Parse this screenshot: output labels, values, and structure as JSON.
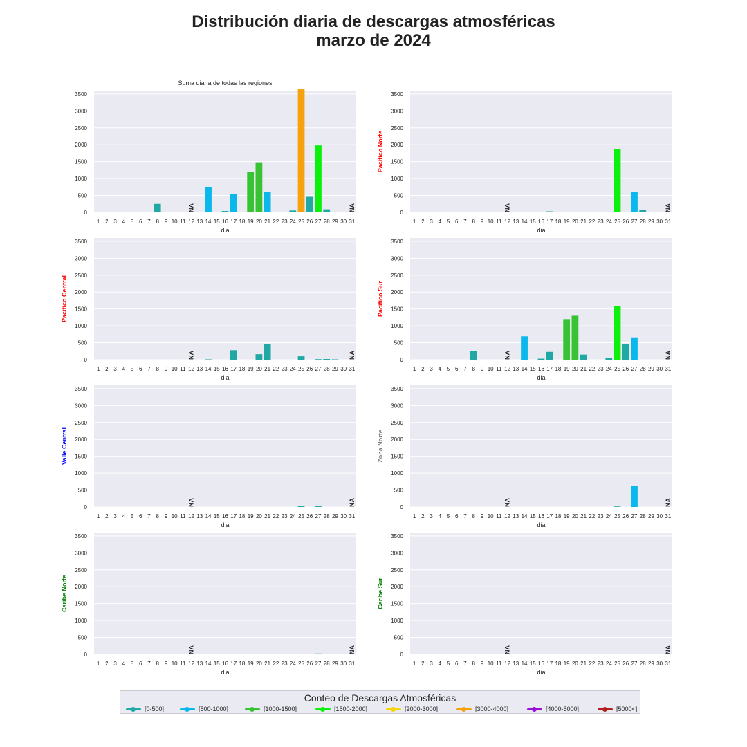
{
  "title_line1": "Distribución diaria de descargas atmosféricas",
  "title_line2": "marzo de 2024",
  "legend": {
    "title": "Conteo de Descargas Atmosféricas",
    "items": [
      {
        "label": "[0-500]",
        "color": "#20a9a4"
      },
      {
        "label": "[500-1000]",
        "color": "#0bb8ec"
      },
      {
        "label": "[1000-1500]",
        "color": "#38c334"
      },
      {
        "label": "[1500-2000]",
        "color": "#0df00d"
      },
      {
        "label": "[2000-3000]",
        "color": "#f6d40c"
      },
      {
        "label": "[3000-4000]",
        "color": "#f5a20e"
      },
      {
        "label": "[4000-5000]",
        "color": "#9a10d8"
      },
      {
        "label": "[5000<]",
        "color": "#b0201e"
      }
    ]
  },
  "chart_data": [
    {
      "type": "bar",
      "title": "Suma diaria de todas las regiones",
      "ylabel": "",
      "ylabel_color": "",
      "xlabel": "dia",
      "ylim": [
        0,
        3600
      ],
      "yticks": [
        0,
        500,
        1000,
        1500,
        2000,
        2500,
        3000,
        3500
      ],
      "categories": [
        "1",
        "2",
        "3",
        "4",
        "5",
        "6",
        "7",
        "8",
        "9",
        "10",
        "11",
        "12",
        "13",
        "14",
        "15",
        "16",
        "17",
        "18",
        "19",
        "20",
        "21",
        "22",
        "23",
        "24",
        "25",
        "26",
        "27",
        "28",
        "29",
        "30",
        "31"
      ],
      "values": [
        0,
        0,
        0,
        0,
        0,
        0,
        0,
        250,
        0,
        0,
        0,
        null,
        0,
        740,
        0,
        40,
        550,
        0,
        1200,
        1480,
        610,
        0,
        0,
        55,
        3640,
        460,
        1980,
        90,
        0,
        0,
        null
      ],
      "na_label": "NA"
    },
    {
      "type": "bar",
      "title": "",
      "ylabel": "Pacífico Norte",
      "ylabel_color": "#ff0000",
      "xlabel": "dia",
      "ylim": [
        0,
        3600
      ],
      "yticks": [
        0,
        500,
        1000,
        1500,
        2000,
        2500,
        3000,
        3500
      ],
      "categories": [
        "1",
        "2",
        "3",
        "4",
        "5",
        "6",
        "7",
        "8",
        "9",
        "10",
        "11",
        "12",
        "13",
        "14",
        "15",
        "16",
        "17",
        "18",
        "19",
        "20",
        "21",
        "22",
        "23",
        "24",
        "25",
        "26",
        "27",
        "28",
        "29",
        "30",
        "31"
      ],
      "values": [
        0,
        0,
        0,
        0,
        0,
        0,
        0,
        0,
        0,
        0,
        0,
        null,
        0,
        0,
        0,
        0,
        30,
        0,
        0,
        0,
        15,
        0,
        0,
        0,
        1870,
        0,
        600,
        70,
        0,
        0,
        null
      ],
      "na_label": "NA"
    },
    {
      "type": "bar",
      "title": "",
      "ylabel": "Pacífico Central",
      "ylabel_color": "#ff0000",
      "xlabel": "dia",
      "ylim": [
        0,
        3600
      ],
      "yticks": [
        0,
        500,
        1000,
        1500,
        2000,
        2500,
        3000,
        3500
      ],
      "categories": [
        "1",
        "2",
        "3",
        "4",
        "5",
        "6",
        "7",
        "8",
        "9",
        "10",
        "11",
        "12",
        "13",
        "14",
        "15",
        "16",
        "17",
        "18",
        "19",
        "20",
        "21",
        "22",
        "23",
        "24",
        "25",
        "26",
        "27",
        "28",
        "29",
        "30",
        "31"
      ],
      "values": [
        0,
        0,
        0,
        0,
        0,
        0,
        0,
        0,
        0,
        0,
        0,
        null,
        0,
        10,
        0,
        0,
        280,
        0,
        0,
        160,
        460,
        0,
        0,
        0,
        100,
        0,
        15,
        20,
        10,
        0,
        null
      ],
      "na_label": "NA"
    },
    {
      "type": "bar",
      "title": "",
      "ylabel": "Pacífico Sur",
      "ylabel_color": "#ff0000",
      "xlabel": "dia",
      "ylim": [
        0,
        3600
      ],
      "yticks": [
        0,
        500,
        1000,
        1500,
        2000,
        2500,
        3000,
        3500
      ],
      "categories": [
        "1",
        "2",
        "3",
        "4",
        "5",
        "6",
        "7",
        "8",
        "9",
        "10",
        "11",
        "12",
        "13",
        "14",
        "15",
        "16",
        "17",
        "18",
        "19",
        "20",
        "21",
        "22",
        "23",
        "24",
        "25",
        "26",
        "27",
        "28",
        "29",
        "30",
        "31"
      ],
      "values": [
        0,
        0,
        0,
        0,
        0,
        0,
        0,
        260,
        0,
        0,
        0,
        null,
        0,
        690,
        0,
        30,
        230,
        0,
        1200,
        1300,
        150,
        0,
        0,
        60,
        1590,
        460,
        660,
        0,
        0,
        0,
        null
      ],
      "na_label": "NA"
    },
    {
      "type": "bar",
      "title": "",
      "ylabel": "Valle Central",
      "ylabel_color": "#0000ff",
      "xlabel": "dia",
      "ylim": [
        0,
        3600
      ],
      "yticks": [
        0,
        500,
        1000,
        1500,
        2000,
        2500,
        3000,
        3500
      ],
      "categories": [
        "1",
        "2",
        "3",
        "4",
        "5",
        "6",
        "7",
        "8",
        "9",
        "10",
        "11",
        "12",
        "13",
        "14",
        "15",
        "16",
        "17",
        "18",
        "19",
        "20",
        "21",
        "22",
        "23",
        "24",
        "25",
        "26",
        "27",
        "28",
        "29",
        "30",
        "31"
      ],
      "values": [
        0,
        0,
        0,
        0,
        0,
        0,
        0,
        0,
        0,
        0,
        0,
        null,
        0,
        0,
        0,
        0,
        0,
        0,
        0,
        0,
        0,
        0,
        0,
        0,
        20,
        0,
        25,
        0,
        0,
        0,
        null
      ],
      "na_label": "NA"
    },
    {
      "type": "bar",
      "title": "",
      "ylabel": "Zona Norte",
      "ylabel_color": "#808080",
      "xlabel": "dia",
      "ylim": [
        0,
        3600
      ],
      "yticks": [
        0,
        500,
        1000,
        1500,
        2000,
        2500,
        3000,
        3500
      ],
      "categories": [
        "1",
        "2",
        "3",
        "4",
        "5",
        "6",
        "7",
        "8",
        "9",
        "10",
        "11",
        "12",
        "13",
        "14",
        "15",
        "16",
        "17",
        "18",
        "19",
        "20",
        "21",
        "22",
        "23",
        "24",
        "25",
        "26",
        "27",
        "28",
        "29",
        "30",
        "31"
      ],
      "values": [
        0,
        0,
        0,
        0,
        0,
        0,
        0,
        0,
        0,
        0,
        0,
        null,
        0,
        0,
        0,
        0,
        0,
        0,
        0,
        0,
        0,
        0,
        0,
        0,
        15,
        0,
        620,
        0,
        0,
        0,
        null
      ],
      "na_label": "NA"
    },
    {
      "type": "bar",
      "title": "",
      "ylabel": "Caribe Norte",
      "ylabel_color": "#008000",
      "xlabel": "dia",
      "ylim": [
        0,
        3600
      ],
      "yticks": [
        0,
        500,
        1000,
        1500,
        2000,
        2500,
        3000,
        3500
      ],
      "categories": [
        "1",
        "2",
        "3",
        "4",
        "5",
        "6",
        "7",
        "8",
        "9",
        "10",
        "11",
        "12",
        "13",
        "14",
        "15",
        "16",
        "17",
        "18",
        "19",
        "20",
        "21",
        "22",
        "23",
        "24",
        "25",
        "26",
        "27",
        "28",
        "29",
        "30",
        "31"
      ],
      "values": [
        0,
        0,
        0,
        0,
        0,
        0,
        0,
        0,
        0,
        0,
        0,
        null,
        0,
        0,
        0,
        0,
        0,
        0,
        0,
        0,
        0,
        0,
        0,
        0,
        0,
        0,
        25,
        0,
        0,
        0,
        null
      ],
      "na_label": "NA"
    },
    {
      "type": "bar",
      "title": "",
      "ylabel": "Caribe Sur",
      "ylabel_color": "#008000",
      "xlabel": "dia",
      "ylim": [
        0,
        3600
      ],
      "yticks": [
        0,
        500,
        1000,
        1500,
        2000,
        2500,
        3000,
        3500
      ],
      "categories": [
        "1",
        "2",
        "3",
        "4",
        "5",
        "6",
        "7",
        "8",
        "9",
        "10",
        "11",
        "12",
        "13",
        "14",
        "15",
        "16",
        "17",
        "18",
        "19",
        "20",
        "21",
        "22",
        "23",
        "24",
        "25",
        "26",
        "27",
        "28",
        "29",
        "30",
        "31"
      ],
      "values": [
        0,
        0,
        0,
        0,
        0,
        0,
        0,
        0,
        0,
        0,
        0,
        null,
        0,
        10,
        0,
        0,
        0,
        0,
        0,
        0,
        0,
        0,
        0,
        0,
        0,
        0,
        10,
        0,
        0,
        0,
        null
      ],
      "na_label": "NA"
    }
  ]
}
